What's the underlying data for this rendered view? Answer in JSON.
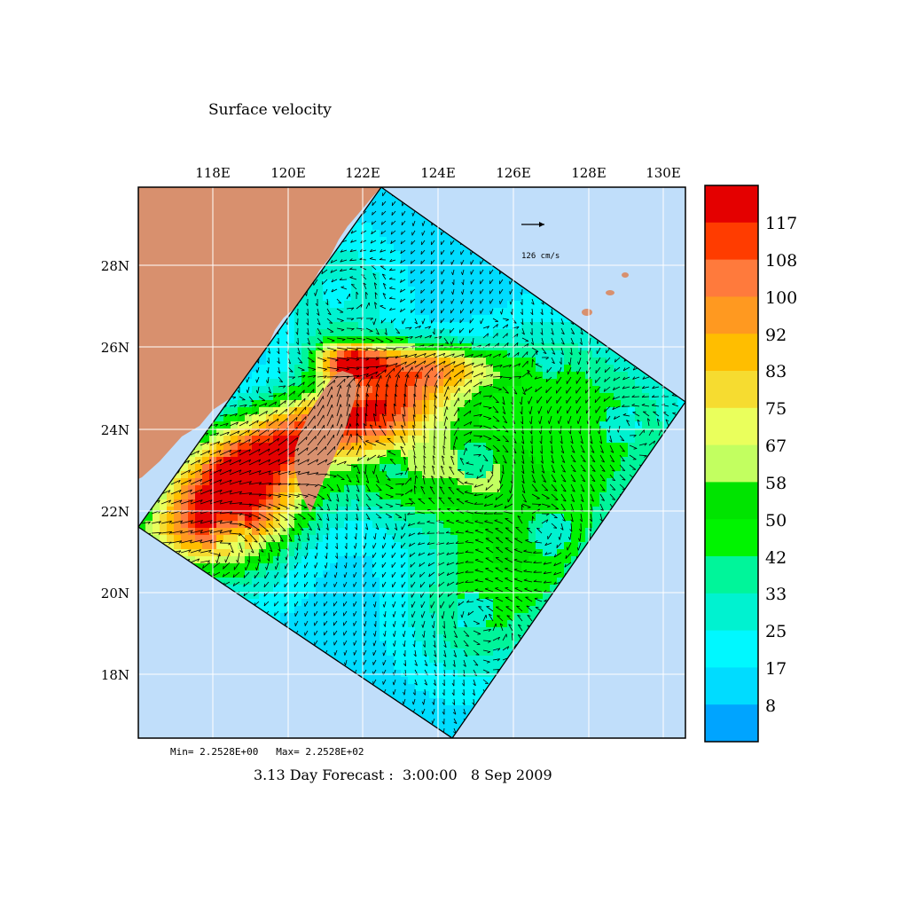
{
  "map": {
    "title": "Surface velocity",
    "footer": "3.13 Day Forecast :  3:00:00   8 Sep 2009",
    "min_max": "Min= 2.2528E+00   Max= 2.2528E+02",
    "reference_vector": "126 cm/s",
    "lon_labels": [
      "118E",
      "120E",
      "122E",
      "124E",
      "126E",
      "128E",
      "130E"
    ],
    "lat_labels": [
      "28N",
      "26N",
      "24N",
      "22N",
      "20N",
      "18N"
    ],
    "colors": {
      "ocean_outside": "#c0defa",
      "land": "#d8906e",
      "vector": "#000000"
    }
  },
  "colorbar": {
    "labels": [
      "117",
      "108",
      "100",
      "92",
      "83",
      "75",
      "67",
      "58",
      "50",
      "42",
      "33",
      "25",
      "17",
      "8"
    ],
    "colors": [
      "#e40000",
      "#ff3c00",
      "#ff7a3c",
      "#ff9920",
      "#ffbe00",
      "#f6dc30",
      "#eaff5c",
      "#c2ff60",
      "#00e400",
      "#00f400",
      "#00f59a",
      "#00f2d0",
      "#00f8ff",
      "#00dcff",
      "#00a4ff"
    ]
  }
}
